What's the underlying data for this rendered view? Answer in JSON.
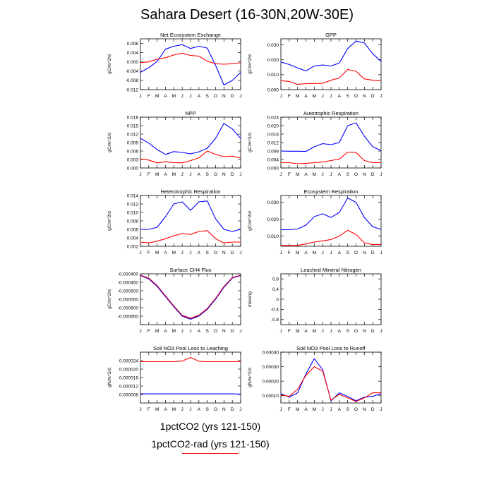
{
  "title": "Sahara Desert (16-30N,20W-30E)",
  "month_labels": [
    "J",
    "F",
    "M",
    "A",
    "M",
    "J",
    "J",
    "A",
    "S",
    "O",
    "N",
    "D",
    "J"
  ],
  "legend": [
    {
      "label": "1pctCO2 (yrs 121-150)",
      "color": "#0000ff"
    },
    {
      "label": "1pctCO2-rad (yrs 121-150)",
      "color": "#ff0000"
    }
  ],
  "chart_data": [
    {
      "type": "line",
      "title": "Net Ecosystem Exchange",
      "ylabel": "gC/m^2/d",
      "ylim": [
        -0.012,
        0.01
      ],
      "yticks": [
        -0.012,
        -0.008,
        -0.004,
        0.0,
        0.004,
        0.008
      ],
      "ytick_labels": [
        "-0.012",
        "-0.008",
        "-0.004",
        "0.000",
        "0.004",
        "0.008"
      ],
      "series": [
        {
          "color": "#0000ff",
          "values": [
            -0.0045,
            -0.0025,
            0.0002,
            0.0055,
            0.0068,
            0.0075,
            0.0058,
            0.0068,
            0.006,
            -0.0015,
            -0.01,
            -0.008,
            -0.0045
          ]
        },
        {
          "color": "#ff0000",
          "values": [
            -0.0003,
            0.0,
            0.0012,
            0.0018,
            0.003,
            0.0038,
            0.0028,
            0.0025,
            0.0003,
            -0.0008,
            -0.001,
            -0.0008,
            -0.0004
          ]
        }
      ]
    },
    {
      "type": "line",
      "title": "GPP",
      "ylabel": "gC/m^2/d",
      "ylim": [
        0.0,
        0.034
      ],
      "yticks": [
        0.0,
        0.01,
        0.02,
        0.03
      ],
      "ytick_labels": [
        "0.000",
        "0.010",
        "0.020",
        "0.030"
      ],
      "series": [
        {
          "color": "#0000ff",
          "values": [
            0.0185,
            0.0168,
            0.0145,
            0.0125,
            0.0158,
            0.0165,
            0.0158,
            0.0178,
            0.0275,
            0.0325,
            0.0312,
            0.024,
            0.0188
          ]
        },
        {
          "color": "#ff0000",
          "values": [
            0.006,
            0.0055,
            0.0035,
            0.004,
            0.004,
            0.0042,
            0.0063,
            0.0078,
            0.0135,
            0.0123,
            0.0072,
            0.0063,
            0.006
          ]
        }
      ]
    },
    {
      "type": "line",
      "title": "NPP",
      "ylabel": "gC/m^2/d",
      "ylim": [
        0.0,
        0.018
      ],
      "yticks": [
        0.0,
        0.003,
        0.006,
        0.009,
        0.012,
        0.015,
        0.018
      ],
      "ytick_labels": [
        "0.000",
        "0.003",
        "0.006",
        "0.009",
        "0.012",
        "0.015",
        "0.018"
      ],
      "series": [
        {
          "color": "#0000ff",
          "values": [
            0.0105,
            0.0088,
            0.0065,
            0.0048,
            0.0058,
            0.0055,
            0.005,
            0.0057,
            0.007,
            0.0105,
            0.0158,
            0.0138,
            0.0105
          ]
        },
        {
          "color": "#ff0000",
          "values": [
            0.0032,
            0.0028,
            0.0018,
            0.0022,
            0.0019,
            0.0018,
            0.0026,
            0.0036,
            0.006,
            0.0048,
            0.004,
            0.0042,
            0.0035
          ]
        }
      ]
    },
    {
      "type": "line",
      "title": "Autotrophic Respiration",
      "ylabel": "gC/m^2/d",
      "ylim": [
        0.0,
        0.024
      ],
      "yticks": [
        0.0,
        0.004,
        0.008,
        0.012,
        0.016,
        0.02,
        0.024
      ],
      "ytick_labels": [
        "0.000",
        "0.004",
        "0.008",
        "0.012",
        "0.016",
        "0.020",
        "0.024"
      ],
      "series": [
        {
          "color": "#0000ff",
          "values": [
            0.008,
            0.0079,
            0.0079,
            0.0078,
            0.01,
            0.0115,
            0.011,
            0.012,
            0.02,
            0.0213,
            0.015,
            0.01,
            0.0082
          ]
        },
        {
          "color": "#ff0000",
          "values": [
            0.0025,
            0.0025,
            0.002,
            0.0022,
            0.0025,
            0.0028,
            0.0035,
            0.0042,
            0.0075,
            0.0073,
            0.0035,
            0.0025,
            0.0025
          ]
        }
      ]
    },
    {
      "type": "line",
      "title": "Heterotrophic Respiration",
      "ylabel": "gC/m^2/d",
      "ylim": [
        0.002,
        0.014
      ],
      "yticks": [
        0.002,
        0.004,
        0.006,
        0.008,
        0.01,
        0.012,
        0.014
      ],
      "ytick_labels": [
        "0.002",
        "0.004",
        "0.006",
        "0.008",
        "0.010",
        "0.012",
        "0.014"
      ],
      "series": [
        {
          "color": "#0000ff",
          "values": [
            0.006,
            0.006,
            0.0065,
            0.009,
            0.012,
            0.0125,
            0.0105,
            0.0125,
            0.0127,
            0.0085,
            0.006,
            0.0055,
            0.006
          ]
        },
        {
          "color": "#ff0000",
          "values": [
            0.003,
            0.0028,
            0.0032,
            0.0038,
            0.0045,
            0.005,
            0.0048,
            0.0055,
            0.0057,
            0.0038,
            0.0028,
            0.003,
            0.003
          ]
        }
      ]
    },
    {
      "type": "line",
      "title": "Ecosystem Respiration",
      "ylabel": "gC/m^2/d",
      "ylim": [
        0.004,
        0.034
      ],
      "yticks": [
        0.01,
        0.02,
        0.03
      ],
      "ytick_labels": [
        "0.010",
        "0.020",
        "0.030"
      ],
      "series": [
        {
          "color": "#0000ff",
          "values": [
            0.0138,
            0.0138,
            0.0142,
            0.0165,
            0.0215,
            0.0232,
            0.021,
            0.024,
            0.0325,
            0.03,
            0.021,
            0.0155,
            0.014
          ]
        },
        {
          "color": "#ff0000",
          "values": [
            0.0045,
            0.0045,
            0.0045,
            0.0055,
            0.0065,
            0.0072,
            0.008,
            0.01,
            0.0135,
            0.011,
            0.006,
            0.005,
            0.005
          ]
        }
      ]
    },
    {
      "type": "line",
      "title": "Surface CH4 Flux",
      "ylabel": "gC/m^2/d",
      "ylim": [
        -0.0007,
        -0.0004
      ],
      "yticks": [
        -0.0007,
        -0.00065,
        -0.0006,
        -0.00055,
        -0.0005,
        -0.00045,
        -0.0004
      ],
      "ytick_labels": [
        "",
        "-0.000650",
        "-0.000600",
        "-0.000550",
        "-0.000500",
        "-0.000450",
        "-0.000400"
      ],
      "series": [
        {
          "color": "#0000ff",
          "values": [
            -0.00041,
            -0.00043,
            -0.000475,
            -0.000535,
            -0.000595,
            -0.00065,
            -0.000668,
            -0.00065,
            -0.00061,
            -0.00055,
            -0.00048,
            -0.000425,
            -0.00041
          ]
        },
        {
          "color": "#ff0000",
          "values": [
            -0.000408,
            -0.000425,
            -0.00047,
            -0.00053,
            -0.00059,
            -0.000645,
            -0.000662,
            -0.000645,
            -0.000605,
            -0.000545,
            -0.000475,
            -0.000422,
            -0.000408
          ]
        },
        {
          "color": "#800080",
          "values": [
            -0.000409,
            -0.000428,
            -0.000472,
            -0.000533,
            -0.000593,
            -0.000648,
            -0.000665,
            -0.000648,
            -0.000608,
            -0.000548,
            -0.000478,
            -0.000424,
            -0.000409
          ]
        }
      ]
    },
    {
      "type": "line",
      "title": "Leached Mineral Nitrogen",
      "ylabel": "missing",
      "ylim": [
        -1.0,
        1.0
      ],
      "yticks": [
        -0.8,
        -0.4,
        0.0,
        0.4,
        0.8
      ],
      "ytick_labels": [
        "-0.8",
        "-0.4",
        "0",
        "0.4",
        "0.8"
      ],
      "series": []
    },
    {
      "type": "line",
      "title": "Soil NO3 Pool Loss to Leaching",
      "ylabel": "gN/m^2/d",
      "ylim": [
        4e-06,
        2.8e-05
      ],
      "yticks": [
        8e-06,
        1.2e-05,
        1.6e-05,
        2e-05,
        2.4e-05
      ],
      "ytick_labels": [
        "0.000008",
        "0.000012",
        "0.000016",
        "0.000020",
        "0.000024"
      ],
      "series": [
        {
          "color": "#ff0000",
          "values": [
            2.35e-05,
            2.35e-05,
            2.35e-05,
            2.35e-05,
            2.35e-05,
            2.38e-05,
            2.55e-05,
            2.37e-05,
            2.35e-05,
            2.35e-05,
            2.35e-05,
            2.35e-05,
            2.36e-05
          ]
        },
        {
          "color": "#0000ff",
          "values": [
            8.3e-06,
            8.3e-06,
            8.3e-06,
            8.3e-06,
            8.3e-06,
            8.3e-06,
            8.3e-06,
            8.3e-06,
            8.3e-06,
            8.3e-06,
            8.3e-06,
            8.3e-06,
            8.2e-06
          ]
        }
      ]
    },
    {
      "type": "line",
      "title": "Soil NO3 Pool Loss to Runoff",
      "ylabel": "gN/m^2/d",
      "ylim": [
        5e-05,
        0.0004
      ],
      "yticks": [
        0.0001,
        0.0002,
        0.0003,
        0.0004
      ],
      "ytick_labels": [
        "0.00010",
        "0.00020",
        "0.00030",
        "0.00040"
      ],
      "series": [
        {
          "color": "#0000ff",
          "values": [
            0.000115,
            9e-05,
            0.00012,
            0.00025,
            0.000355,
            0.00028,
            6.5e-05,
            0.00012,
            9.5e-05,
            6.5e-05,
            9e-05,
            9.5e-05,
            0.000115
          ]
        },
        {
          "color": "#ff0000",
          "values": [
            0.000105,
            9.5e-05,
            0.000145,
            0.00024,
            0.0003,
            0.00027,
            7e-05,
            0.00011,
            8.5e-05,
            6e-05,
            8.5e-05,
            0.00012,
            0.00012
          ]
        }
      ]
    }
  ]
}
